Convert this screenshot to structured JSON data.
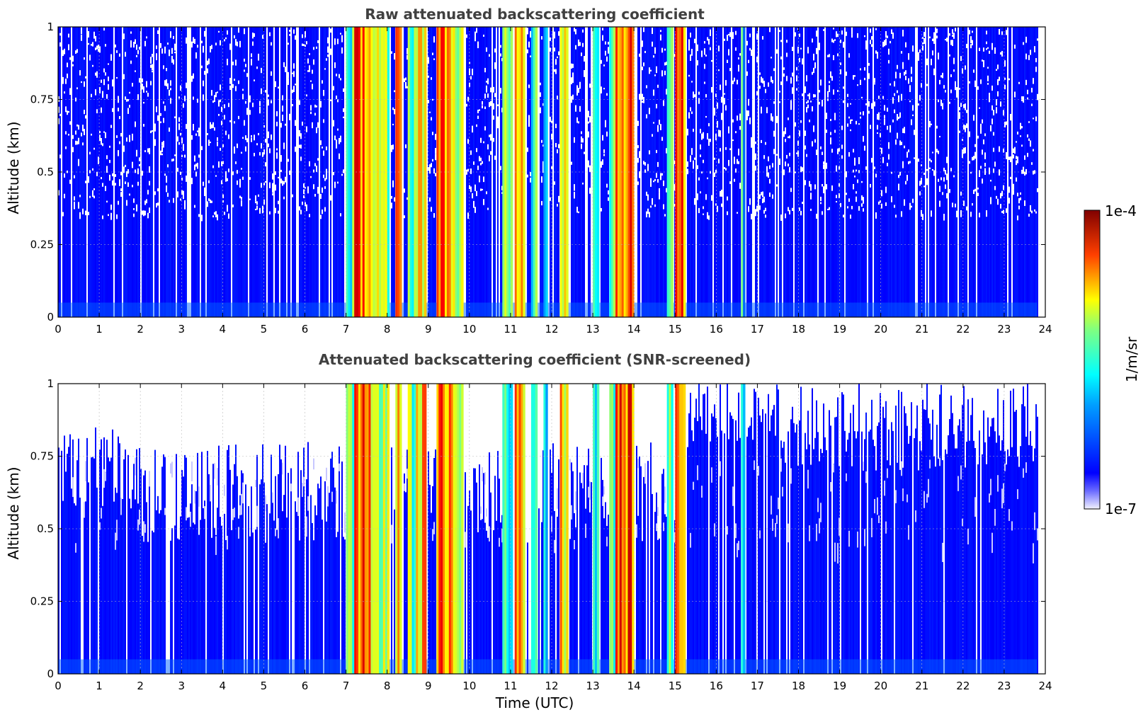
{
  "chart_data": [
    {
      "type": "heatmap",
      "title": "Raw attenuated backscattering coefficient",
      "xlabel": "",
      "ylabel": "Altitude (km)",
      "xlim": [
        0,
        24
      ],
      "ylim": [
        0,
        1
      ],
      "x_ticks": [
        "0",
        "1",
        "2",
        "3",
        "4",
        "5",
        "6",
        "7",
        "8",
        "9",
        "10",
        "11",
        "12",
        "13",
        "14",
        "15",
        "16",
        "17",
        "18",
        "19",
        "20",
        "21",
        "22",
        "23",
        "24"
      ],
      "y_ticks": [
        "0",
        "0.25",
        "0.5",
        "0.75",
        "1"
      ],
      "grid": true,
      "screened": false,
      "data_end_hour": 23.8,
      "bands": [
        {
          "start": 7.0,
          "end": 7.2,
          "level": 0.55
        },
        {
          "start": 7.2,
          "end": 7.6,
          "level": 0.88
        },
        {
          "start": 7.6,
          "end": 7.8,
          "level": 0.7
        },
        {
          "start": 7.8,
          "end": 8.05,
          "level": 0.6
        },
        {
          "start": 8.2,
          "end": 8.35,
          "level": 0.8
        },
        {
          "start": 8.5,
          "end": 8.7,
          "level": 0.6
        },
        {
          "start": 8.7,
          "end": 8.95,
          "level": 0.78
        },
        {
          "start": 9.2,
          "end": 9.6,
          "level": 0.85
        },
        {
          "start": 9.6,
          "end": 9.85,
          "level": 0.65
        },
        {
          "start": 10.8,
          "end": 11.05,
          "level": 0.55
        },
        {
          "start": 11.1,
          "end": 11.35,
          "level": 0.8
        },
        {
          "start": 11.5,
          "end": 11.65,
          "level": 0.55
        },
        {
          "start": 11.8,
          "end": 11.9,
          "level": 0.5
        },
        {
          "start": 12.2,
          "end": 12.4,
          "level": 0.78
        },
        {
          "start": 13.0,
          "end": 13.15,
          "level": 0.55
        },
        {
          "start": 13.4,
          "end": 13.55,
          "level": 0.6
        },
        {
          "start": 13.55,
          "end": 14.0,
          "level": 0.88
        },
        {
          "start": 14.8,
          "end": 14.95,
          "level": 0.55
        },
        {
          "start": 15.0,
          "end": 15.25,
          "level": 0.86
        },
        {
          "start": 16.6,
          "end": 16.7,
          "level": 0.45
        }
      ]
    },
    {
      "type": "heatmap",
      "title": "Attenuated backscattering coefficient (SNR-screened)",
      "xlabel": "Time (UTC)",
      "ylabel": "Altitude (km)",
      "xlim": [
        0,
        24
      ],
      "ylim": [
        0,
        1
      ],
      "x_ticks": [
        "0",
        "1",
        "2",
        "3",
        "4",
        "5",
        "6",
        "7",
        "8",
        "9",
        "10",
        "11",
        "12",
        "13",
        "14",
        "15",
        "16",
        "17",
        "18",
        "19",
        "20",
        "21",
        "22",
        "23",
        "24"
      ],
      "y_ticks": [
        "0",
        "0.25",
        "0.5",
        "0.75",
        "1"
      ],
      "grid": true,
      "screened": true,
      "data_end_hour": 23.8,
      "bands": [
        {
          "start": 7.0,
          "end": 7.2,
          "level": 0.55
        },
        {
          "start": 7.2,
          "end": 7.6,
          "level": 0.88
        },
        {
          "start": 7.6,
          "end": 7.8,
          "level": 0.7
        },
        {
          "start": 7.8,
          "end": 8.05,
          "level": 0.6
        },
        {
          "start": 8.2,
          "end": 8.35,
          "level": 0.8
        },
        {
          "start": 8.5,
          "end": 8.7,
          "level": 0.6
        },
        {
          "start": 8.7,
          "end": 8.95,
          "level": 0.78
        },
        {
          "start": 9.2,
          "end": 9.6,
          "level": 0.85
        },
        {
          "start": 9.6,
          "end": 9.85,
          "level": 0.65
        },
        {
          "start": 10.8,
          "end": 11.05,
          "level": 0.55
        },
        {
          "start": 11.1,
          "end": 11.35,
          "level": 0.8
        },
        {
          "start": 11.5,
          "end": 11.65,
          "level": 0.55
        },
        {
          "start": 11.8,
          "end": 11.9,
          "level": 0.5
        },
        {
          "start": 12.2,
          "end": 12.4,
          "level": 0.78
        },
        {
          "start": 13.0,
          "end": 13.15,
          "level": 0.55
        },
        {
          "start": 13.4,
          "end": 13.55,
          "level": 0.6
        },
        {
          "start": 13.55,
          "end": 14.0,
          "level": 0.88
        },
        {
          "start": 14.8,
          "end": 14.95,
          "level": 0.55
        },
        {
          "start": 15.0,
          "end": 15.25,
          "level": 0.86
        },
        {
          "start": 16.6,
          "end": 16.7,
          "level": 0.45
        }
      ]
    }
  ],
  "colorbar": {
    "label": "1/m/sr",
    "max_label": "1e-4",
    "min_label": "1e-7",
    "colormap": "jet",
    "min_color": "#ffffff",
    "max_color": "#800000"
  }
}
